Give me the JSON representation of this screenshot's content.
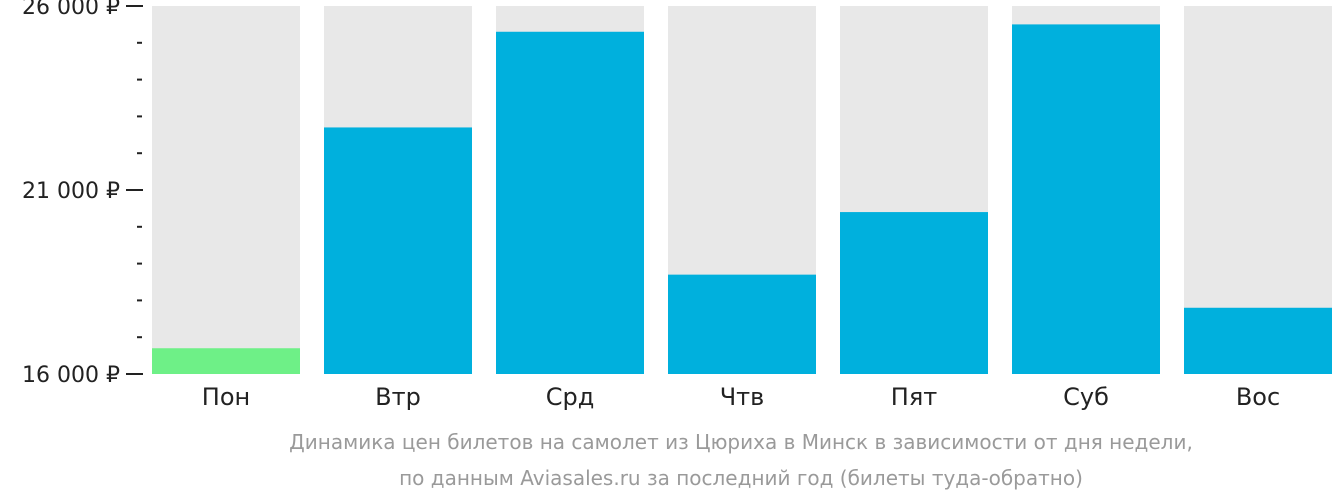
{
  "chart_data": {
    "type": "bar",
    "categories": [
      "Пон",
      "Втр",
      "Срд",
      "Чтв",
      "Пят",
      "Суб",
      "Вос"
    ],
    "values": [
      16700,
      22700,
      25300,
      18700,
      20400,
      25500,
      17800
    ],
    "highlight_index": 0,
    "ylim": [
      16000,
      26000
    ],
    "y_ticks": [
      16000,
      21000,
      26000
    ],
    "y_tick_labels": [
      "16 000 ₽",
      "21 000 ₽",
      "26 000 ₽"
    ],
    "y_minor_step": 1000,
    "grid": false,
    "legend": "none",
    "colors": {
      "bar": "#00b0dd",
      "highlight": "#6ef087",
      "track": "#e8e8e8",
      "text": "#222222",
      "caption": "#9a9a9a"
    }
  },
  "caption": {
    "line1": "Динамика цен билетов на самолет из Цюриха в Минск в зависимости от дня недели,",
    "line2": "по данным Aviasales.ru за последний год (билеты туда-обратно)"
  }
}
